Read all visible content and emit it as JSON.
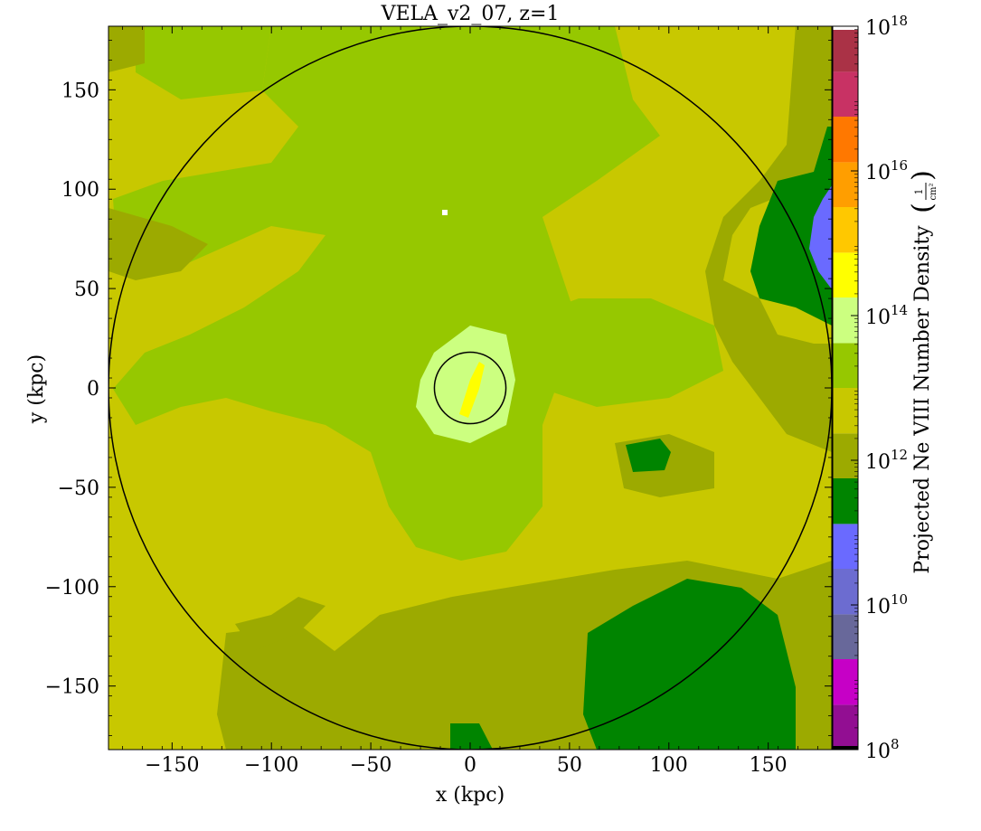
{
  "chart_data": {
    "type": "heatmap",
    "title": "VELA_v2_07, z=1",
    "xlabel": "x  (kpc)",
    "ylabel": "y  (kpc)",
    "xlim": [
      -182,
      182
    ],
    "ylim": [
      -182,
      182
    ],
    "x_ticks": [
      -150,
      -100,
      -50,
      0,
      50,
      100,
      150
    ],
    "y_ticks": [
      150,
      100,
      50,
      0,
      -50,
      -100,
      -150
    ],
    "x_tick_labels": [
      "−150",
      "−100",
      "−50",
      "0",
      "50",
      "100",
      "150"
    ],
    "y_tick_labels": [
      "150",
      "100",
      "50",
      "0",
      "−50",
      "−100",
      "−150"
    ],
    "colorbar": {
      "label": "Projected Ne VIII Number Density",
      "unit_numerator": "1",
      "unit_denominator": "cm²",
      "scale": "log",
      "range_exponent": [
        8,
        18
      ],
      "tick_exponents": [
        18,
        16,
        14,
        12,
        10,
        8
      ],
      "bands": [
        {
          "from": 8.0,
          "to": 8.05,
          "color": "#000000"
        },
        {
          "from": 8.05,
          "to": 8.62,
          "color": "#920e92"
        },
        {
          "from": 8.62,
          "to": 9.25,
          "color": "#c600c6"
        },
        {
          "from": 9.25,
          "to": 9.87,
          "color": "#68689a"
        },
        {
          "from": 9.87,
          "to": 10.5,
          "color": "#6c6cd0"
        },
        {
          "from": 10.5,
          "to": 11.12,
          "color": "#6a6aff"
        },
        {
          "from": 11.12,
          "to": 11.75,
          "color": "#008400"
        },
        {
          "from": 11.75,
          "to": 12.37,
          "color": "#9caa00"
        },
        {
          "from": 12.37,
          "to": 13.0,
          "color": "#c8c800"
        },
        {
          "from": 13.0,
          "to": 13.62,
          "color": "#96c800"
        },
        {
          "from": 13.62,
          "to": 14.25,
          "color": "#ccff80"
        },
        {
          "from": 14.25,
          "to": 14.87,
          "color": "#ffff00"
        },
        {
          "from": 14.87,
          "to": 15.5,
          "color": "#ffc800"
        },
        {
          "from": 15.5,
          "to": 16.12,
          "color": "#ff9e00"
        },
        {
          "from": 16.12,
          "to": 16.75,
          "color": "#ff7800"
        },
        {
          "from": 16.75,
          "to": 17.37,
          "color": "#c83264"
        },
        {
          "from": 17.37,
          "to": 17.95,
          "color": "#aa3246"
        },
        {
          "from": 17.95,
          "to": 18.0,
          "color": "#ffffff"
        }
      ]
    },
    "circles": [
      {
        "name": "outer-radius",
        "cx": 0,
        "cy": 0,
        "r": 182
      },
      {
        "name": "inner-radius",
        "cx": 0,
        "cy": 0,
        "r": 18
      }
    ],
    "colors": {
      "background_level": "#c8c800",
      "green_level": "#96c800",
      "olive_level": "#9caa00",
      "dark_green_level": "#008400",
      "blue_level": "#6a6aff",
      "light_level": "#ccff80",
      "yellow_level": "#ffff00",
      "white_level": "#ffffff"
    }
  }
}
